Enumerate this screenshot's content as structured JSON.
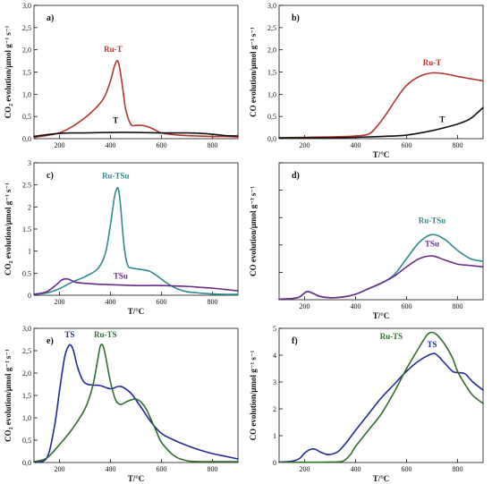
{
  "chart_data": [
    {
      "panel": "a)",
      "type": "line",
      "xlabel": "",
      "ylabel": "CO2 evolution/μmol g⁻¹ s⁻¹",
      "ylabel_main": "CO",
      "ylabel_sub": "2",
      "ylabel_rest": " evolution/μmol g⁻¹ s⁻¹",
      "xlim": [
        100,
        900
      ],
      "ylim": [
        0,
        3.0
      ],
      "xticks": [
        200,
        400,
        600,
        800
      ],
      "yticks": [
        0,
        0.5,
        1.0,
        1.5,
        2.0,
        2.5,
        3.0
      ],
      "ytick_labels": [
        "0,0",
        "0,5",
        "1,0",
        "1,5",
        "2,0",
        "2,5",
        "3,0"
      ],
      "series": [
        {
          "name": "Ru-T",
          "color": "#b5352a",
          "x": [
            100,
            150,
            200,
            250,
            300,
            330,
            360,
            380,
            400,
            415,
            425,
            432,
            440,
            450,
            460,
            480,
            500,
            520,
            540,
            560,
            580,
            600,
            650,
            700,
            750,
            800,
            850,
            900
          ],
          "y": [
            0.03,
            0.07,
            0.13,
            0.27,
            0.47,
            0.62,
            0.8,
            0.98,
            1.3,
            1.62,
            1.75,
            1.7,
            1.45,
            1.05,
            0.65,
            0.32,
            0.3,
            0.3,
            0.28,
            0.24,
            0.18,
            0.13,
            0.09,
            0.07,
            0.06,
            0.05,
            0.05,
            0.04
          ],
          "label_x": 410,
          "label_y": 1.95
        },
        {
          "name": "T",
          "color": "#111111",
          "x": [
            100,
            150,
            200,
            250,
            300,
            400,
            500,
            600,
            700,
            750,
            800,
            850,
            900
          ],
          "y": [
            0.05,
            0.09,
            0.12,
            0.13,
            0.13,
            0.14,
            0.14,
            0.13,
            0.13,
            0.12,
            0.1,
            0.07,
            0.06
          ],
          "label_x": 420,
          "label_y": 0.35
        }
      ]
    },
    {
      "panel": "b)",
      "type": "line",
      "xlabel": "T/°C",
      "ylabel": "CO evolution/μmol g⁻¹ s⁻¹",
      "ylabel_main": "CO evolution/μmol g⁻¹ s⁻¹",
      "ylabel_sub": "",
      "ylabel_rest": "",
      "xlim": [
        100,
        900
      ],
      "ylim": [
        0,
        3.0
      ],
      "xticks": [
        200,
        400,
        600,
        800
      ],
      "yticks": [
        0,
        0.5,
        1.0,
        1.5,
        2.0,
        2.5,
        3.0
      ],
      "ytick_labels": [
        "0,0",
        "0,5",
        "1,0",
        "1,5",
        "2,0",
        "2,5",
        "3,0"
      ],
      "series": [
        {
          "name": "Ru-T",
          "color": "#b5352a",
          "x": [
            100,
            200,
            300,
            400,
            450,
            480,
            520,
            560,
            600,
            650,
            700,
            750,
            800,
            850,
            900
          ],
          "y": [
            0.02,
            0.03,
            0.04,
            0.06,
            0.1,
            0.25,
            0.55,
            0.9,
            1.2,
            1.4,
            1.48,
            1.46,
            1.4,
            1.35,
            1.3
          ],
          "label_x": 700,
          "label_y": 1.65
        },
        {
          "name": "T",
          "color": "#111111",
          "x": [
            100,
            200,
            300,
            400,
            500,
            600,
            700,
            750,
            800,
            850,
            900
          ],
          "y": [
            0.02,
            0.02,
            0.02,
            0.03,
            0.05,
            0.08,
            0.18,
            0.25,
            0.33,
            0.45,
            0.7
          ],
          "label_x": 740,
          "label_y": 0.37
        }
      ]
    },
    {
      "panel": "c)",
      "type": "line",
      "xlabel": "T/°C",
      "ylabel": "CO2 evolution/μmol g⁻¹ s⁻¹",
      "ylabel_main": "CO",
      "ylabel_sub": "2",
      "ylabel_rest": " evolution/μmol g⁻¹ s⁻¹",
      "xlim": [
        100,
        900
      ],
      "ylim": [
        0,
        3.0
      ],
      "xticks": [
        200,
        400,
        600,
        800
      ],
      "yticks": [
        0,
        0.5,
        1.0,
        1.5,
        2.0,
        2.5,
        3.0
      ],
      "ytick_labels": [
        "0",
        "0.5",
        "1",
        "1.5",
        "2",
        "2.5",
        "3"
      ],
      "series": [
        {
          "name": "Ru-TSu",
          "color": "#2e8a8e",
          "x": [
            100,
            150,
            200,
            250,
            300,
            350,
            380,
            400,
            415,
            425,
            432,
            440,
            450,
            460,
            470,
            480,
            500,
            550,
            580,
            620,
            660,
            700,
            750,
            800,
            850,
            900
          ],
          "y": [
            0.02,
            0.05,
            0.15,
            0.3,
            0.42,
            0.6,
            0.95,
            1.6,
            2.2,
            2.42,
            2.38,
            2.0,
            1.3,
            0.85,
            0.65,
            0.62,
            0.6,
            0.55,
            0.45,
            0.28,
            0.15,
            0.08,
            0.05,
            0.03,
            0.02,
            0.02
          ],
          "label_x": 420,
          "label_y": 2.65
        },
        {
          "name": "TSu",
          "color": "#6a2a8a",
          "x": [
            100,
            150,
            190,
            210,
            230,
            245,
            260,
            280,
            300,
            350,
            400,
            500,
            600,
            700,
            750,
            800,
            850,
            900
          ],
          "y": [
            0.02,
            0.08,
            0.25,
            0.35,
            0.37,
            0.34,
            0.3,
            0.28,
            0.27,
            0.25,
            0.24,
            0.22,
            0.22,
            0.2,
            0.18,
            0.16,
            0.13,
            0.1
          ],
          "label_x": 440,
          "label_y": 0.38
        }
      ]
    },
    {
      "panel": "d)",
      "type": "line",
      "xlabel": "T/°C",
      "ylabel": "CO evolution/μmol g⁻¹ s⁻¹",
      "ylabel_main": "CO evolution/μmol g⁻¹ s⁻¹",
      "ylabel_sub": "",
      "ylabel_rest": "",
      "xlim": [
        100,
        900
      ],
      "ylim": [
        0,
        5
      ],
      "xticks": [
        200,
        400,
        600,
        800
      ],
      "yticks": [
        0,
        1,
        2,
        3,
        4,
        5
      ],
      "ytick_labels": [
        "",
        "",
        "",
        "",
        "",
        ""
      ],
      "series": [
        {
          "name": "Ru-TSu",
          "color": "#2e8a8e",
          "x": [
            100,
            150,
            180,
            200,
            210,
            220,
            240,
            260,
            300,
            350,
            400,
            450,
            500,
            550,
            600,
            650,
            700,
            750,
            800,
            850,
            900
          ],
          "y": [
            0.02,
            0.04,
            0.1,
            0.25,
            0.3,
            0.28,
            0.2,
            0.12,
            0.07,
            0.1,
            0.2,
            0.4,
            0.6,
            0.9,
            1.5,
            2.1,
            2.38,
            2.2,
            1.8,
            1.5,
            1.4
          ],
          "label_x": 700,
          "label_y": 2.8
        },
        {
          "name": "TSu",
          "color": "#6a2a8a",
          "x": [
            100,
            150,
            180,
            200,
            210,
            220,
            240,
            260,
            300,
            350,
            400,
            450,
            500,
            550,
            600,
            650,
            700,
            750,
            800,
            850,
            900
          ],
          "y": [
            0.02,
            0.04,
            0.1,
            0.25,
            0.3,
            0.28,
            0.2,
            0.12,
            0.07,
            0.1,
            0.2,
            0.4,
            0.6,
            0.85,
            1.2,
            1.5,
            1.6,
            1.45,
            1.3,
            1.25,
            1.2
          ],
          "label_x": 700,
          "label_y": 1.95
        }
      ]
    },
    {
      "panel": "e)",
      "type": "line",
      "xlabel": "T/°C",
      "ylabel": "CO2 evolution/μmol g⁻¹ s⁻¹",
      "ylabel_main": "CO",
      "ylabel_sub": "2",
      "ylabel_rest": " evolution/μmol g⁻¹ s⁻¹",
      "xlim": [
        100,
        900
      ],
      "ylim": [
        0,
        3.0
      ],
      "xticks": [
        200,
        400,
        600,
        800
      ],
      "yticks": [
        0,
        0.5,
        1.0,
        1.5,
        2.0,
        2.5,
        3.0
      ],
      "ytick_labels": [
        "0,0",
        "0,5",
        "1,0",
        "1,5",
        "2,0",
        "2,5",
        "3,0"
      ],
      "series": [
        {
          "name": "TS",
          "color": "#1f2a9a",
          "x": [
            100,
            150,
            180,
            200,
            220,
            235,
            245,
            255,
            270,
            290,
            310,
            340,
            360,
            400,
            430,
            450,
            480,
            500,
            530,
            560,
            600,
            650,
            700,
            750,
            800,
            850,
            900
          ],
          "y": [
            0.02,
            0.1,
            0.8,
            1.6,
            2.35,
            2.6,
            2.62,
            2.5,
            2.15,
            1.85,
            1.75,
            1.73,
            1.72,
            1.65,
            1.7,
            1.68,
            1.55,
            1.4,
            1.15,
            0.9,
            0.65,
            0.5,
            0.38,
            0.28,
            0.2,
            0.14,
            0.08
          ],
          "label_x": 240,
          "label_y": 2.8
        },
        {
          "name": "Ru-TS",
          "color": "#2e6e2a",
          "x": [
            100,
            150,
            200,
            250,
            300,
            330,
            350,
            360,
            370,
            380,
            400,
            420,
            440,
            460,
            480,
            500,
            520,
            540,
            560,
            580,
            600,
            650,
            700,
            750,
            800,
            850,
            900
          ],
          "y": [
            0.02,
            0.1,
            0.4,
            0.75,
            1.2,
            1.7,
            2.3,
            2.6,
            2.62,
            2.4,
            1.8,
            1.4,
            1.3,
            1.35,
            1.4,
            1.42,
            1.35,
            1.2,
            0.95,
            0.7,
            0.45,
            0.15,
            0.04,
            0.02,
            0.02,
            0.02,
            0.02
          ],
          "label_x": 380,
          "label_y": 2.8
        }
      ]
    },
    {
      "panel": "f)",
      "type": "line",
      "xlabel": "T/°C",
      "ylabel": "CO evolution/μmol g⁻¹ s⁻¹",
      "ylabel_main": "CO evolution/μmol g⁻¹ s⁻¹",
      "ylabel_sub": "",
      "ylabel_rest": "",
      "xlim": [
        100,
        900
      ],
      "ylim": [
        0,
        5
      ],
      "xticks": [
        200,
        400,
        600,
        800
      ],
      "yticks": [
        0,
        1,
        2,
        3,
        4,
        5
      ],
      "ytick_labels": [
        "0",
        "1",
        "2",
        "3",
        "4",
        "5"
      ],
      "series": [
        {
          "name": "TS",
          "color": "#1f2a9a",
          "x": [
            100,
            150,
            180,
            200,
            220,
            240,
            260,
            280,
            300,
            330,
            360,
            400,
            450,
            500,
            550,
            600,
            650,
            700,
            720,
            750,
            780,
            800,
            830,
            860,
            900
          ],
          "y": [
            0.02,
            0.05,
            0.15,
            0.35,
            0.48,
            0.5,
            0.4,
            0.32,
            0.3,
            0.4,
            0.7,
            1.2,
            1.8,
            2.4,
            2.9,
            3.4,
            3.8,
            4.05,
            4.0,
            3.7,
            3.4,
            3.35,
            3.3,
            3.0,
            2.7
          ],
          "label_x": 700,
          "label_y": 4.3
        },
        {
          "name": "Ru-TS",
          "color": "#2e6e2a",
          "x": [
            100,
            200,
            300,
            350,
            380,
            400,
            450,
            500,
            550,
            600,
            650,
            680,
            700,
            720,
            750,
            780,
            800,
            830,
            860,
            900
          ],
          "y": [
            0.01,
            0.01,
            0.02,
            0.05,
            0.3,
            0.6,
            1.2,
            1.8,
            2.6,
            3.5,
            4.3,
            4.75,
            4.85,
            4.75,
            4.4,
            3.9,
            3.4,
            2.9,
            2.5,
            2.2
          ],
          "label_x": 540,
          "label_y": 4.6
        }
      ]
    }
  ]
}
